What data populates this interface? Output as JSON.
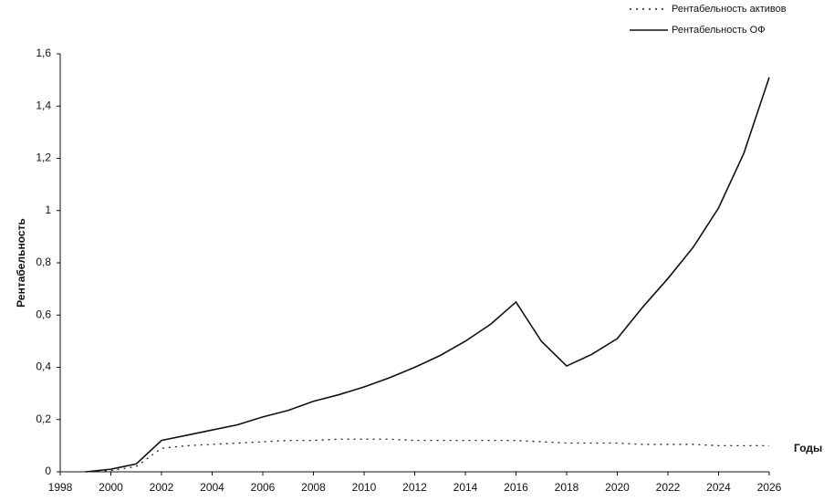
{
  "chart_data": {
    "type": "line",
    "x_label": "Годы",
    "y_label": "Рентабельность",
    "x": [
      1999,
      2000,
      2001,
      2002,
      2003,
      2004,
      2005,
      2006,
      2007,
      2008,
      2009,
      2010,
      2011,
      2012,
      2013,
      2014,
      2015,
      2016,
      2017,
      2018,
      2019,
      2020,
      2021,
      2022,
      2023,
      2024,
      2025,
      2026
    ],
    "series": [
      {
        "name": "Рентабельность активов",
        "color": "#222222",
        "dash": "dotted",
        "values": [
          0,
          0.005,
          0.02,
          0.09,
          0.1,
          0.105,
          0.11,
          0.115,
          0.12,
          0.12,
          0.125,
          0.125,
          0.125,
          0.12,
          0.12,
          0.12,
          0.12,
          0.12,
          0.115,
          0.11,
          0.11,
          0.11,
          0.105,
          0.105,
          0.105,
          0.1,
          0.1,
          0.1
        ]
      },
      {
        "name": "Рентабельность ОФ",
        "color": "#111111",
        "dash": "solid",
        "values": [
          0,
          0.01,
          0.03,
          0.12,
          0.14,
          0.16,
          0.18,
          0.21,
          0.235,
          0.27,
          0.295,
          0.325,
          0.36,
          0.4,
          0.445,
          0.5,
          0.565,
          0.65,
          0.5,
          0.405,
          0.45,
          0.51,
          0.63,
          0.74,
          0.86,
          1.01,
          1.22,
          1.51
        ]
      }
    ],
    "xlim": [
      1998,
      2026
    ],
    "xticks": [
      1998,
      2000,
      2002,
      2004,
      2006,
      2008,
      2010,
      2012,
      2014,
      2016,
      2018,
      2020,
      2022,
      2024,
      2026
    ],
    "ylim": [
      0,
      1.6
    ],
    "yticks": [
      0,
      {
        "value": 0.2,
        "label": "0,2"
      },
      {
        "value": 0.4,
        "label": "0,4"
      },
      {
        "value": 0.6,
        "label": "0,6"
      },
      {
        "value": 0.8,
        "label": "0,8"
      },
      1,
      {
        "value": 1.2,
        "label": "1,2"
      },
      {
        "value": 1.4,
        "label": "1,4"
      },
      {
        "value": 1.6,
        "label": "1,6"
      }
    ],
    "grid": false,
    "legend": "top-right"
  }
}
